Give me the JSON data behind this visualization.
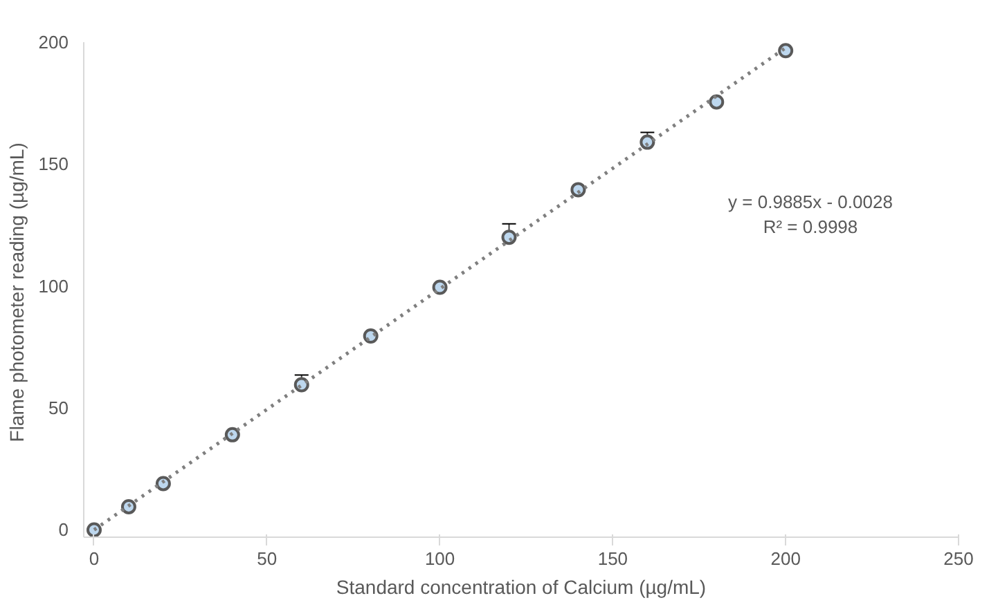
{
  "chart_data": {
    "type": "scatter",
    "xlabel": "Standard concentration of Calcium (µg/mL)",
    "ylabel": "Flame photometer reading  (µg/mL)",
    "series": [
      {
        "color": "#bdd7ee",
        "marker": "circle",
        "x": [
          0,
          10,
          20,
          40,
          60,
          80,
          100,
          120,
          140,
          160,
          180,
          200
        ],
        "values": [
          0,
          9.5,
          19,
          39,
          59.5,
          79.5,
          99.5,
          120,
          139.5,
          159,
          175.5,
          196.5
        ],
        "errors": [
          null,
          null,
          null,
          null,
          [
            59.5,
            63.5
          ],
          null,
          null,
          [
            120,
            125.5
          ],
          null,
          [
            159,
            163
          ],
          null,
          null
        ]
      },
      {
        "type": "line",
        "color": "#7f7f7f",
        "line_style": "dotted",
        "marker": "none",
        "x": [
          0,
          200
        ],
        "values": [
          0,
          197.7
        ]
      }
    ],
    "xlim": [
      -3,
      250
    ],
    "ylim": [
      -3,
      200
    ],
    "xticks": [
      0,
      50,
      100,
      150,
      200,
      250
    ],
    "yticks": [
      0,
      50,
      100,
      150,
      200
    ],
    "grid": false,
    "annotations": [
      "y = 0.9885x - 0.0028",
      "R² = 0.9998"
    ]
  }
}
